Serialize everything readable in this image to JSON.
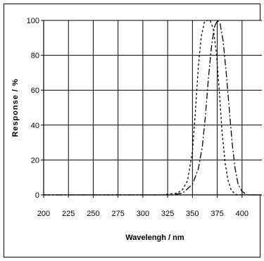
{
  "chart_data": {
    "type": "line",
    "title": "",
    "xlabel": "Wavelengh / nm",
    "ylabel": "Response / %",
    "xlim": [
      200,
      420
    ],
    "ylim": [
      0,
      100
    ],
    "x_ticks": [
      200,
      225,
      250,
      275,
      300,
      325,
      350,
      375,
      400
    ],
    "y_ticks": [
      0,
      20,
      40,
      60,
      80,
      100
    ],
    "grid": true,
    "legend": "none",
    "series": [
      {
        "line_style": "short-dash",
        "color": "#000000",
        "x": [
          200,
          320,
          335,
          340,
          345,
          350,
          353,
          356,
          359,
          362,
          365,
          368,
          371,
          374,
          377,
          380,
          383,
          386,
          389,
          392,
          395,
          400,
          410,
          420
        ],
        "y": [
          0,
          0,
          1,
          3,
          8,
          25,
          48,
          74,
          91,
          99,
          100,
          100,
          95,
          82,
          60,
          35,
          18,
          8,
          3,
          1,
          0,
          0,
          0,
          0
        ]
      },
      {
        "line_style": "long-dash",
        "color": "#000000",
        "x": [
          200,
          330,
          340,
          350,
          356,
          360,
          363,
          366,
          369,
          372,
          375,
          378,
          381,
          384,
          387,
          390,
          393,
          396,
          400,
          405,
          410,
          420
        ],
        "y": [
          0,
          0,
          1,
          6,
          15,
          28,
          45,
          66,
          84,
          96,
          100,
          98,
          88,
          70,
          50,
          30,
          15,
          6,
          2,
          0,
          0,
          0
        ]
      }
    ]
  }
}
